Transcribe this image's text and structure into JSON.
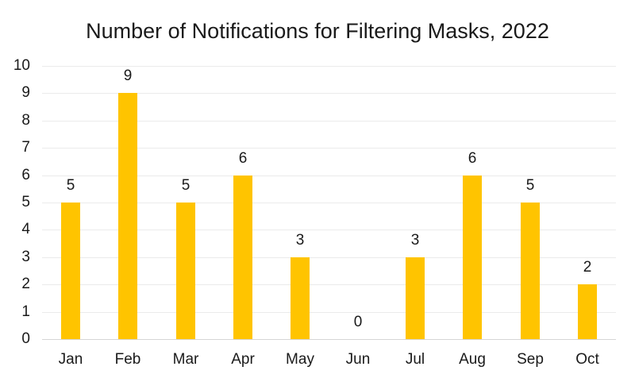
{
  "chart_data": {
    "type": "bar",
    "title": "Number of Notifications for Filtering Masks, 2022",
    "categories": [
      "Jan",
      "Feb",
      "Mar",
      "Apr",
      "May",
      "Jun",
      "Jul",
      "Aug",
      "Sep",
      "Oct"
    ],
    "values": [
      5,
      9,
      5,
      6,
      3,
      0,
      3,
      6,
      5,
      2
    ],
    "xlabel": "",
    "ylabel": "",
    "ylim": [
      0,
      10
    ],
    "ytick_step": 1,
    "grid": true,
    "legend": false,
    "data_labels": true,
    "bar_color": "#ffc400",
    "gridline_color": "#ebebeb",
    "axis_line_color": "#d6d6d6",
    "text_color": "#1a1a1a"
  }
}
